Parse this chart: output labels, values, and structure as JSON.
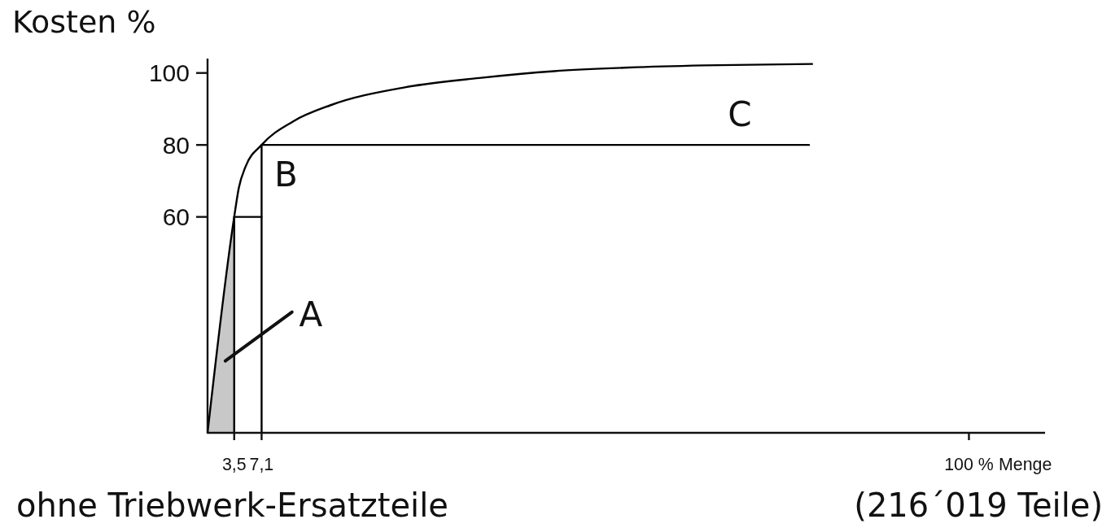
{
  "chart_data": {
    "type": "line",
    "ylabel": "Kosten %",
    "xlabel": "Menge",
    "annotations": [
      "A",
      "B",
      "C",
      "ohne Triebwerk-Ersatzteile",
      "(216´019 Teile)"
    ],
    "xlim": [
      0,
      110
    ],
    "ylim": [
      0,
      104
    ],
    "xticks": [
      {
        "value": 3.5,
        "label": "3,5"
      },
      {
        "value": 7.1,
        "label": "7,1"
      },
      {
        "value": 100,
        "label": "100 %"
      }
    ],
    "yticks": [
      60,
      80,
      100
    ],
    "series": [
      {
        "type": "area",
        "color": "#c8c8c8",
        "x": [
          0,
          3.5
        ],
        "values": [
          0,
          60
        ]
      },
      {
        "color": "#000000",
        "x": [
          0,
          3.5,
          4.1,
          5,
          7.1,
          11.2,
          16.1,
          25.9,
          35.7,
          45.5,
          55.3,
          65.1,
          79.4
        ],
        "values": [
          0,
          60,
          68,
          74,
          80,
          86.5,
          91,
          96,
          98.6,
          100.5,
          101.5,
          102.1,
          102.5
        ]
      },
      {
        "color": "#000000",
        "x": [
          3.5,
          3.5,
          7.1
        ],
        "values": [
          0,
          60,
          60
        ]
      },
      {
        "color": "#000000",
        "x": [
          7.1,
          7.1,
          79
        ],
        "values": [
          0,
          80,
          80
        ]
      }
    ]
  }
}
